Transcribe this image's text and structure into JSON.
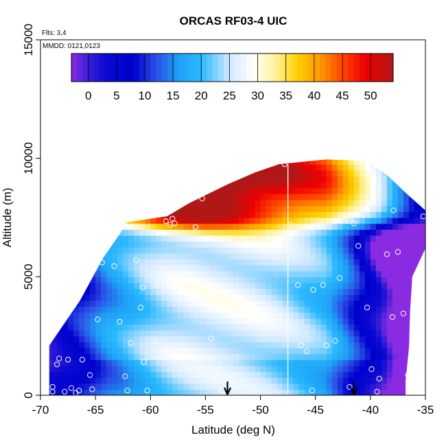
{
  "chart_data": {
    "type": "heatmap",
    "title": "ORCAS RF03-4 UIC",
    "note_flights": "Flts: 3,4",
    "note_dates": "MMDD: 0121,0123",
    "xlabel": "Latitude (deg N)",
    "ylabel": "Altitude (m)",
    "xlim": [
      -70,
      -35
    ],
    "ylim": [
      0,
      15000
    ],
    "x_ticks": [
      -70,
      -65,
      -60,
      -55,
      -50,
      -45,
      -40,
      -35
    ],
    "y_ticks": [
      0,
      5000,
      10000,
      15000
    ],
    "x_tick_labels": [
      "-70",
      "-65",
      "-60",
      "-55",
      "-50",
      "-45",
      "-40",
      "-35"
    ],
    "y_tick_labels": [
      "0",
      "5000",
      "10000",
      "15000"
    ],
    "colorbar": {
      "range": [
        -3,
        54
      ],
      "ticks": [
        0,
        5,
        10,
        15,
        20,
        25,
        30,
        35,
        40,
        45,
        50
      ],
      "tick_labels": [
        "0",
        "5",
        "10",
        "15",
        "20",
        "25",
        "30",
        "35",
        "40",
        "45",
        "50"
      ],
      "stops": [
        [
          -3,
          "#8a2be2"
        ],
        [
          0,
          "#3b1fd8"
        ],
        [
          3,
          "#0a0ad2"
        ],
        [
          8,
          "#0000cd"
        ],
        [
          12,
          "#2b4fe4"
        ],
        [
          16,
          "#1ea0f5"
        ],
        [
          20,
          "#2ab8ff"
        ],
        [
          25,
          "#cfe8ff"
        ],
        [
          29,
          "#ffffff"
        ],
        [
          33,
          "#fff4a0"
        ],
        [
          37,
          "#ffd000"
        ],
        [
          41,
          "#ff9a00"
        ],
        [
          45,
          "#ff4400"
        ],
        [
          49,
          "#ee0000"
        ],
        [
          54,
          "#b01818"
        ]
      ]
    },
    "envelope": [
      [
        -69.2,
        0
      ],
      [
        -69.2,
        2100
      ],
      [
        -66.4,
        4000
      ],
      [
        -64.3,
        5800
      ],
      [
        -62.8,
        6800
      ],
      [
        -62.2,
        7300
      ],
      [
        -58.5,
        7550
      ],
      [
        -56.5,
        8100
      ],
      [
        -53,
        8900
      ],
      [
        -50.5,
        9400
      ],
      [
        -48.3,
        9750
      ],
      [
        -44,
        9950
      ],
      [
        -40.5,
        9900
      ],
      [
        -38.5,
        9300
      ],
      [
        -36.7,
        8500
      ],
      [
        -35,
        7800
      ],
      [
        -35,
        6200
      ],
      [
        -36.2,
        5000
      ],
      [
        -36.4,
        3500
      ],
      [
        -36.5,
        2000
      ],
      [
        -36.8,
        600
      ],
      [
        -36.8,
        0
      ]
    ],
    "profile_line_lat": -47.5,
    "arrow_lats": [
      -53,
      -41.5
    ],
    "sample_points": [
      [
        -68.9,
        150
      ],
      [
        -68.9,
        350
      ],
      [
        -68.5,
        1300
      ],
      [
        -68.3,
        1550
      ],
      [
        -67.8,
        150
      ],
      [
        -67.5,
        1500
      ],
      [
        -67.2,
        300
      ],
      [
        -66.8,
        100
      ],
      [
        -66.5,
        200
      ],
      [
        -66.2,
        1500
      ],
      [
        -65.5,
        850
      ],
      [
        -65.3,
        250
      ],
      [
        -64.8,
        3200
      ],
      [
        -64.4,
        5600
      ],
      [
        -63.8,
        7100
      ],
      [
        -63.3,
        5450
      ],
      [
        -62.8,
        3100
      ],
      [
        -62.3,
        800
      ],
      [
        -62.1,
        200
      ],
      [
        -61.8,
        2200
      ],
      [
        -61.3,
        5700
      ],
      [
        -60.9,
        3700
      ],
      [
        -60.7,
        4550
      ],
      [
        -60.6,
        1400
      ],
      [
        -60.3,
        200
      ],
      [
        -59.6,
        2300
      ],
      [
        -59.4,
        4650
      ],
      [
        -58.6,
        7350
      ],
      [
        -58.2,
        7200
      ],
      [
        -58.0,
        7450
      ],
      [
        -57.8,
        7250
      ],
      [
        -55.9,
        7100
      ],
      [
        -55.3,
        8300
      ],
      [
        -54.9,
        4700
      ],
      [
        -54.6,
        4300
      ],
      [
        -54.5,
        2400
      ],
      [
        -53.8,
        1100
      ],
      [
        -53.5,
        200
      ],
      [
        -47.8,
        9750
      ],
      [
        -47.3,
        7200
      ],
      [
        -46.6,
        4650
      ],
      [
        -46.3,
        2100
      ],
      [
        -45.8,
        1850
      ],
      [
        -45.3,
        200
      ],
      [
        -45.2,
        4450
      ],
      [
        -44.5,
        7200
      ],
      [
        -44.3,
        4650
      ],
      [
        -44.0,
        2100
      ],
      [
        -43.2,
        2300
      ],
      [
        -42.8,
        4950
      ],
      [
        -42.2,
        7600
      ],
      [
        -41.9,
        350
      ],
      [
        -41.5,
        7250
      ],
      [
        -41.1,
        6300
      ],
      [
        -40.3,
        3700
      ],
      [
        -39.9,
        1100
      ],
      [
        -39.4,
        150
      ],
      [
        -39.2,
        700
      ],
      [
        -38.5,
        5950
      ],
      [
        -38.0,
        3300
      ],
      [
        -37.9,
        7800
      ],
      [
        -37.5,
        6050
      ],
      [
        -37.0,
        3450
      ],
      [
        -36.6,
        850
      ],
      [
        -36.4,
        200
      ],
      [
        -35.9,
        2400
      ],
      [
        -35.6,
        5000
      ],
      [
        -35.2,
        7550
      ]
    ],
    "grid": false,
    "legend": "colorbar inside top of plot area"
  }
}
